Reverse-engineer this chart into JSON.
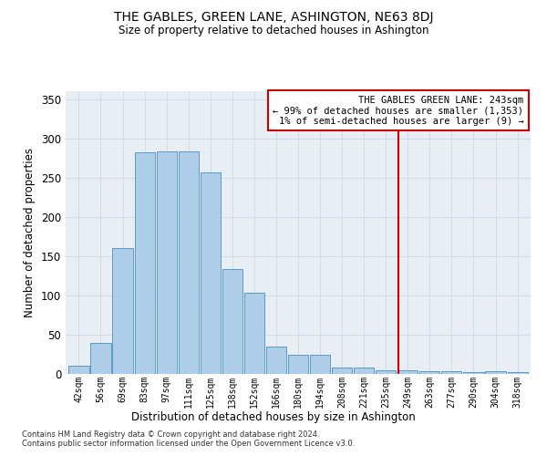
{
  "title": "THE GABLES, GREEN LANE, ASHINGTON, NE63 8DJ",
  "subtitle": "Size of property relative to detached houses in Ashington",
  "xlabel": "Distribution of detached houses by size in Ashington",
  "ylabel": "Number of detached properties",
  "bar_labels": [
    "42sqm",
    "56sqm",
    "69sqm",
    "83sqm",
    "97sqm",
    "111sqm",
    "125sqm",
    "138sqm",
    "152sqm",
    "166sqm",
    "180sqm",
    "194sqm",
    "208sqm",
    "221sqm",
    "235sqm",
    "249sqm",
    "263sqm",
    "277sqm",
    "290sqm",
    "304sqm",
    "318sqm"
  ],
  "bar_heights": [
    10,
    40,
    160,
    282,
    283,
    283,
    257,
    133,
    103,
    35,
    24,
    24,
    8,
    8,
    5,
    5,
    4,
    3,
    2,
    3,
    2
  ],
  "bar_color": "#aecde8",
  "bar_edge_color": "#5a9ac5",
  "ylim": [
    0,
    360
  ],
  "yticks": [
    0,
    50,
    100,
    150,
    200,
    250,
    300,
    350
  ],
  "vline_color": "#cc0000",
  "annotation_title": "THE GABLES GREEN LANE: 243sqm",
  "annotation_line1": "← 99% of detached houses are smaller (1,353)",
  "annotation_line2": "1% of semi-detached houses are larger (9) →",
  "annotation_box_color": "#ffffff",
  "annotation_box_edge": "#cc0000",
  "grid_color": "#d0dce8",
  "background_color": "#e8eef4",
  "footer1": "Contains HM Land Registry data © Crown copyright and database right 2024.",
  "footer2": "Contains public sector information licensed under the Open Government Licence v3.0."
}
